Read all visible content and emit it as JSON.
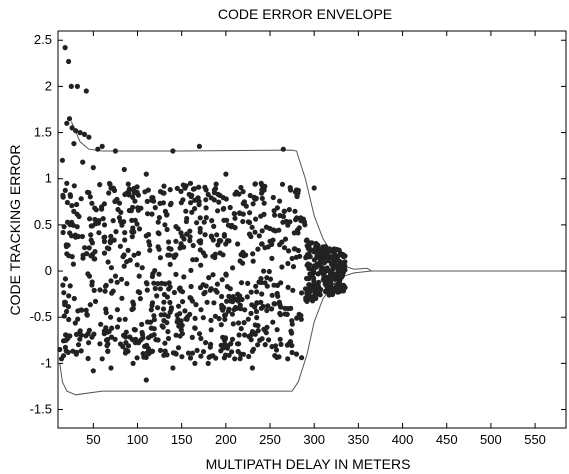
{
  "chart_data": {
    "type": "scatter",
    "title": "CODE ERROR ENVELOPE",
    "xlabel": "MULTIPATH DELAY IN METERS",
    "ylabel": "CODE TRACKING ERROR",
    "xlim": [
      10,
      585
    ],
    "ylim": [
      -1.7,
      2.6
    ],
    "grid": false,
    "legend": "none",
    "xticks": [
      50,
      100,
      150,
      200,
      250,
      300,
      350,
      400,
      450,
      500,
      550
    ],
    "yticks": [
      -1.5,
      -1,
      -0.5,
      0,
      0.5,
      1,
      1.5,
      2,
      2.5
    ],
    "series": [
      {
        "kind": "points",
        "color": "#222222",
        "points": [
          [
            18,
            2.42
          ],
          [
            22,
            2.27
          ],
          [
            25,
            2.0
          ],
          [
            32,
            2.0
          ],
          [
            42,
            1.95
          ],
          [
            20,
            1.6
          ],
          [
            23,
            1.65
          ],
          [
            26,
            1.55
          ],
          [
            30,
            1.52
          ],
          [
            35,
            1.5
          ],
          [
            40,
            1.48
          ],
          [
            45,
            1.45
          ],
          [
            28,
            1.38
          ],
          [
            55,
            1.32
          ],
          [
            60,
            1.35
          ],
          [
            75,
            1.3
          ],
          [
            140,
            1.3
          ],
          [
            170,
            1.35
          ],
          [
            265,
            1.32
          ],
          [
            15,
            1.2
          ],
          [
            38,
            1.18
          ],
          [
            50,
            1.12
          ],
          [
            85,
            1.1
          ],
          [
            110,
            1.05
          ],
          [
            200,
            1.05
          ],
          [
            300,
            0.9
          ],
          [
            20,
            0.95
          ],
          [
            45,
            0.85
          ],
          [
            70,
            0.9
          ],
          [
            130,
            0.92
          ],
          [
            160,
            0.95
          ],
          [
            240,
            0.95
          ],
          [
            12,
            -0.85
          ],
          [
            14,
            -0.95
          ],
          [
            50,
            -1.08
          ],
          [
            70,
            -1.05
          ],
          [
            95,
            -1.0
          ],
          [
            110,
            -1.18
          ],
          [
            140,
            -1.05
          ],
          [
            180,
            -1.0
          ],
          [
            210,
            -0.95
          ],
          [
            270,
            -0.95
          ],
          [
            280,
            -0.9
          ],
          [
            60,
            -0.95
          ],
          [
            165,
            -1.0
          ],
          [
            230,
            -1.05
          ]
        ],
        "generated_band": {
          "x_range": [
            15,
            290
          ],
          "y_range": [
            -0.95,
            0.95
          ],
          "count": 820,
          "dense_x_range": [
            290,
            335
          ],
          "dense_y_range": [
            -0.35,
            0.35
          ],
          "dense_count": 260
        }
      },
      {
        "kind": "envelope",
        "color": "#555555",
        "upper": [
          [
            25,
            1.62
          ],
          [
            35,
            1.4
          ],
          [
            45,
            1.32
          ],
          [
            60,
            1.3
          ],
          [
            150,
            1.3
          ],
          [
            275,
            1.31
          ],
          [
            280,
            1.3
          ],
          [
            290,
            1.0
          ],
          [
            300,
            0.6
          ],
          [
            310,
            0.35
          ],
          [
            325,
            0.12
          ],
          [
            335,
            0.05
          ],
          [
            345,
            0.02
          ],
          [
            360,
            0.03
          ],
          [
            365,
            0.0
          ],
          [
            585,
            0.0
          ]
        ],
        "lower": [
          [
            12,
            -1.0
          ],
          [
            15,
            -1.2
          ],
          [
            20,
            -1.3
          ],
          [
            30,
            -1.34
          ],
          [
            60,
            -1.3
          ],
          [
            150,
            -1.3
          ],
          [
            275,
            -1.3
          ],
          [
            282,
            -1.2
          ],
          [
            292,
            -0.9
          ],
          [
            300,
            -0.55
          ],
          [
            310,
            -0.3
          ],
          [
            325,
            -0.1
          ],
          [
            335,
            -0.05
          ],
          [
            345,
            -0.02
          ],
          [
            365,
            0.0
          ],
          [
            585,
            0.0
          ]
        ]
      }
    ]
  }
}
